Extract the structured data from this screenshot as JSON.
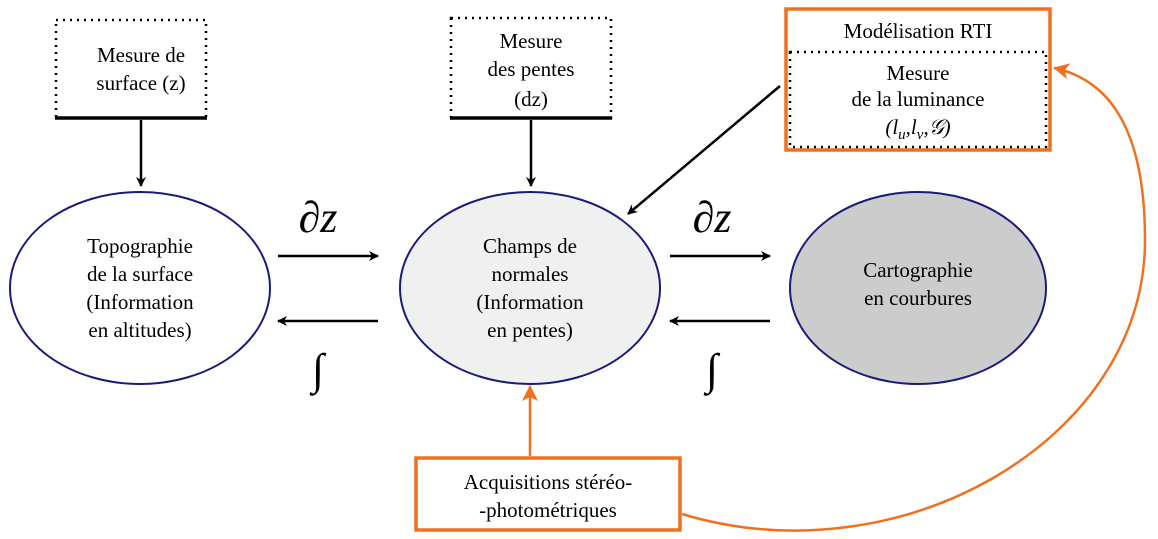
{
  "inputs": [
    {
      "lines": [
        "Mesure de",
        "surface (z)"
      ]
    },
    {
      "lines": [
        "Mesure",
        "des pentes",
        "(dz)"
      ]
    }
  ],
  "rti": {
    "title": "Modélisation RTI",
    "lines": [
      "Mesure",
      "de la luminance"
    ],
    "math": [
      "(l",
      "u",
      ",l",
      "v",
      ",𝒢)"
    ]
  },
  "nodes": [
    {
      "lines": [
        "Topographie",
        "de la surface",
        "(Information",
        "en altitudes)"
      ]
    },
    {
      "lines": [
        "Champs de",
        "normales",
        "(Information",
        "en pentes)"
      ]
    },
    {
      "lines": [
        "Cartographie",
        "en courbures"
      ]
    }
  ],
  "operators": {
    "derivative": "∂z",
    "integral": "∫"
  },
  "acquisition": {
    "lines": [
      "Acquisitions stéréo-",
      "-photométriques"
    ]
  }
}
